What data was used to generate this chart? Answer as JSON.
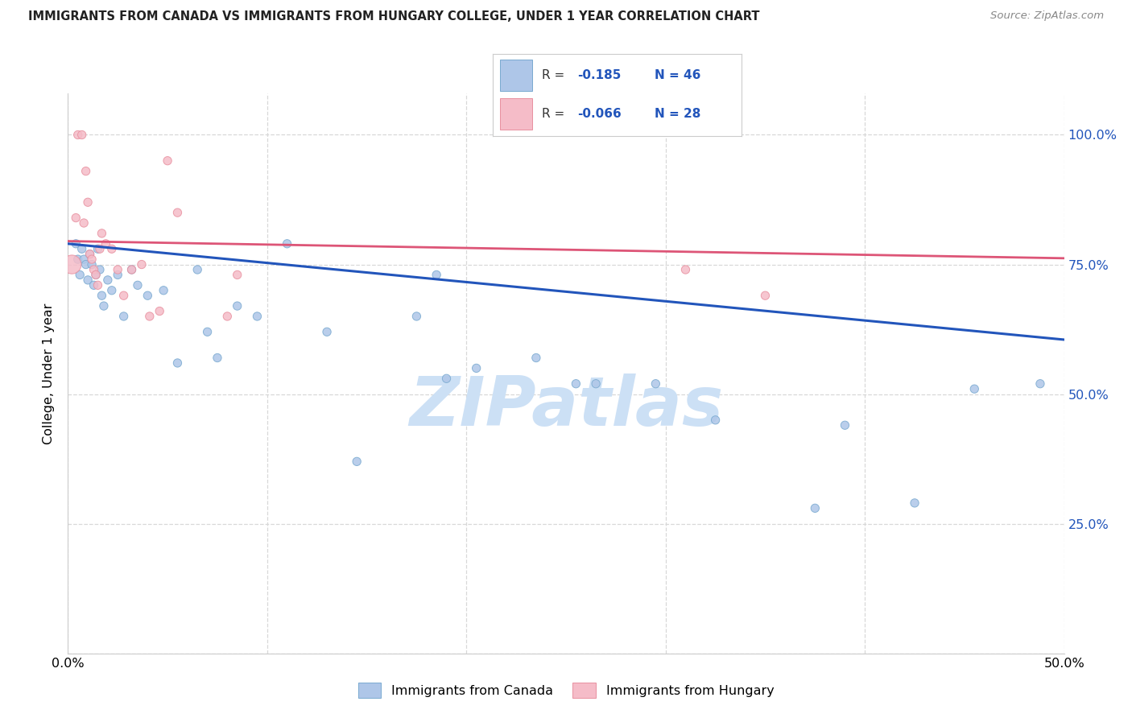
{
  "title": "IMMIGRANTS FROM CANADA VS IMMIGRANTS FROM HUNGARY COLLEGE, UNDER 1 YEAR CORRELATION CHART",
  "source": "Source: ZipAtlas.com",
  "ylabel": "College, Under 1 year",
  "xlim": [
    0.0,
    0.5
  ],
  "ylim": [
    0.0,
    1.08
  ],
  "x_ticks": [
    0.0,
    0.1,
    0.2,
    0.3,
    0.4,
    0.5
  ],
  "y_ticks": [
    0.0,
    0.25,
    0.5,
    0.75,
    1.0
  ],
  "canada_color": "#aec6e8",
  "hungary_color": "#f5bcc8",
  "canada_edge": "#7aaad0",
  "hungary_edge": "#e8909f",
  "blue_line_color": "#2255bb",
  "pink_line_color": "#dd5577",
  "watermark_color": "#cce0f5",
  "bg_color": "#ffffff",
  "grid_color": "#d8d8d8",
  "right_tick_color": "#2255bb",
  "canada_x": [
    0.004,
    0.005,
    0.006,
    0.007,
    0.008,
    0.009,
    0.01,
    0.011,
    0.012,
    0.013,
    0.014,
    0.015,
    0.016,
    0.017,
    0.018,
    0.02,
    0.022,
    0.025,
    0.028,
    0.032,
    0.035,
    0.04,
    0.048,
    0.055,
    0.065,
    0.07,
    0.075,
    0.085,
    0.095,
    0.11,
    0.13,
    0.145,
    0.175,
    0.185,
    0.19,
    0.205,
    0.235,
    0.255,
    0.265,
    0.295,
    0.325,
    0.375,
    0.39,
    0.425,
    0.455,
    0.488
  ],
  "canada_y": [
    0.79,
    0.76,
    0.73,
    0.78,
    0.76,
    0.75,
    0.72,
    0.77,
    0.75,
    0.71,
    0.73,
    0.78,
    0.74,
    0.69,
    0.67,
    0.72,
    0.7,
    0.73,
    0.65,
    0.74,
    0.71,
    0.69,
    0.7,
    0.56,
    0.74,
    0.62,
    0.57,
    0.67,
    0.65,
    0.79,
    0.62,
    0.37,
    0.65,
    0.73,
    0.53,
    0.55,
    0.57,
    0.52,
    0.52,
    0.52,
    0.45,
    0.28,
    0.44,
    0.29,
    0.51,
    0.52
  ],
  "hungary_x": [
    0.002,
    0.004,
    0.005,
    0.007,
    0.008,
    0.009,
    0.01,
    0.011,
    0.012,
    0.013,
    0.014,
    0.015,
    0.016,
    0.017,
    0.019,
    0.022,
    0.025,
    0.028,
    0.032,
    0.037,
    0.041,
    0.046,
    0.05,
    0.055,
    0.08,
    0.085,
    0.31,
    0.35
  ],
  "hungary_y": [
    0.75,
    0.84,
    1.0,
    1.0,
    0.83,
    0.93,
    0.87,
    0.77,
    0.76,
    0.74,
    0.73,
    0.71,
    0.78,
    0.81,
    0.79,
    0.78,
    0.74,
    0.69,
    0.74,
    0.75,
    0.65,
    0.66,
    0.95,
    0.85,
    0.65,
    0.73,
    0.74,
    0.69
  ],
  "hungary_size_big": [
    0
  ],
  "canada_sizes": [
    55,
    55,
    55,
    55,
    55,
    55,
    55,
    55,
    55,
    55,
    55,
    55,
    55,
    55,
    55,
    55,
    55,
    55,
    55,
    55,
    55,
    55,
    55,
    55,
    55,
    55,
    55,
    55,
    55,
    55,
    55,
    55,
    55,
    55,
    55,
    55,
    55,
    55,
    55,
    55,
    55,
    55,
    55,
    55,
    55,
    55
  ],
  "hungary_sizes": [
    280,
    55,
    55,
    55,
    55,
    55,
    55,
    55,
    55,
    55,
    55,
    55,
    55,
    55,
    55,
    55,
    55,
    55,
    55,
    55,
    55,
    55,
    55,
    55,
    55,
    55,
    55,
    55
  ],
  "blue_line_x0": 0.0,
  "blue_line_x1": 0.5,
  "blue_line_y0": 0.79,
  "blue_line_y1": 0.605,
  "pink_line_x0": 0.0,
  "pink_line_x1": 0.5,
  "pink_line_y0": 0.795,
  "pink_line_y1": 0.762
}
